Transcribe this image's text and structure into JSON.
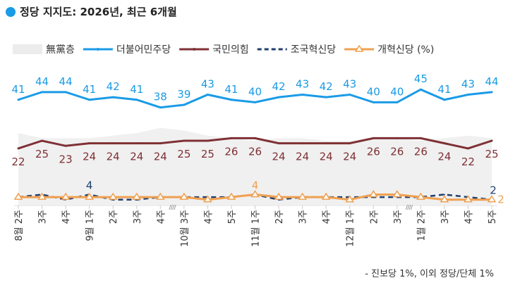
{
  "title": "정당 지지도: 2026년, 최근 6개월",
  "footnote": "- 진보당 1%, 이외 정당/단체 1%",
  "chart_data": {
    "type": "line",
    "unit": "%",
    "categories": [
      "8월 2주",
      "3주",
      "4주",
      "9월 1주",
      "2주",
      "3주",
      "4주",
      "10월 3주",
      "4주",
      "5주",
      "11월 1주",
      "2주",
      "3주",
      "4주",
      "12월 1주",
      "2주",
      "3주",
      "1월 2주",
      "3주",
      "4주",
      "5주"
    ],
    "breaks_after": [
      6,
      16
    ],
    "series": [
      {
        "name": "無黨층",
        "type": "area",
        "color": "#f0f0f0",
        "values": [
          28,
          26,
          26,
          26,
          27,
          28,
          30,
          29,
          27,
          26,
          25,
          26,
          26,
          25,
          25,
          26,
          26,
          25,
          26,
          27,
          26
        ]
      },
      {
        "name": "더불어민주당",
        "color": "#1a9be6",
        "values": [
          41,
          44,
          44,
          41,
          42,
          41,
          38,
          39,
          43,
          41,
          40,
          42,
          43,
          42,
          43,
          40,
          40,
          45,
          41,
          43,
          44
        ],
        "labels": "all"
      },
      {
        "name": "국민의힘",
        "color": "#7f3035",
        "values": [
          22,
          25,
          23,
          24,
          24,
          24,
          24,
          25,
          25,
          26,
          26,
          24,
          24,
          24,
          24,
          26,
          26,
          26,
          24,
          22,
          25
        ],
        "labels": "all"
      },
      {
        "name": "조국혁신당",
        "color": "#1f3f6e",
        "dashed": true,
        "values": [
          3,
          4,
          2,
          4,
          2,
          2,
          3,
          3,
          3,
          3,
          4,
          2,
          3,
          3,
          3,
          3,
          3,
          3,
          4,
          3,
          2
        ],
        "labeled_points": {
          "3": "4",
          "20": "2"
        }
      },
      {
        "name": "개혁신당 (%)",
        "color": "#f0a050",
        "marker": "triangle",
        "values": [
          3,
          3,
          3,
          3,
          3,
          3,
          3,
          3,
          2,
          3,
          4,
          3,
          3,
          3,
          2,
          4,
          4,
          3,
          2,
          2,
          2
        ],
        "labeled_points": {
          "10": "4",
          "20": "2"
        }
      }
    ]
  }
}
